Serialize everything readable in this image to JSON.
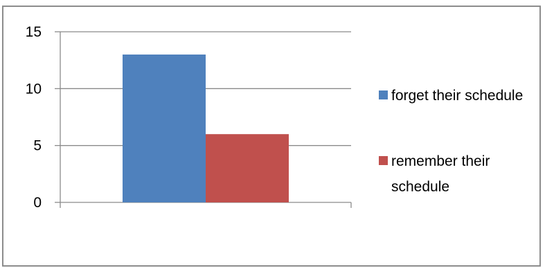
{
  "chart_data": {
    "type": "bar",
    "categories": [
      ""
    ],
    "series": [
      {
        "name": "forget their schedule",
        "values": [
          13
        ],
        "color": "#4f81bd"
      },
      {
        "name": "remember their schedule",
        "values": [
          6
        ],
        "color": "#c0504d"
      }
    ],
    "ylim": [
      0,
      15
    ],
    "yticks": [
      0,
      5,
      10,
      15
    ],
    "legend_lines": [
      [
        "forget their schedule"
      ],
      [
        "remember their",
        "schedule"
      ]
    ],
    "grid": true,
    "legend_position": "right"
  }
}
